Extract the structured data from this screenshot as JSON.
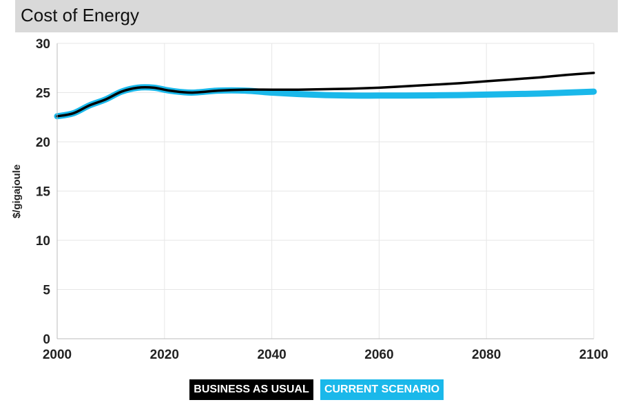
{
  "header": {
    "title": "Cost of Energy"
  },
  "legend": {
    "business_label": "BUSINESS AS USUAL",
    "current_label": "CURRENT SCENARIO"
  },
  "colors": {
    "business": "#000000",
    "current": "#1ab8ea",
    "grid": "#e6e6e6",
    "title_bg": "#d9d9d9"
  },
  "chart_data": {
    "type": "line",
    "title": "Cost of Energy",
    "xlabel": "",
    "ylabel": "$/gigajoule",
    "xlim": [
      2000,
      2100
    ],
    "ylim": [
      0,
      30
    ],
    "x_ticks": [
      2000,
      2020,
      2040,
      2060,
      2080,
      2100
    ],
    "y_ticks": [
      0,
      5,
      10,
      15,
      20,
      25,
      30
    ],
    "grid": true,
    "legend_position": "bottom",
    "series": [
      {
        "name": "BUSINESS AS USUAL",
        "x": [
          2000,
          2003,
          2006,
          2009,
          2012,
          2015,
          2018,
          2021,
          2025,
          2030,
          2035,
          2040,
          2045,
          2050,
          2055,
          2060,
          2065,
          2070,
          2075,
          2080,
          2085,
          2090,
          2095,
          2100
        ],
        "y": [
          22.6,
          22.9,
          23.7,
          24.3,
          25.1,
          25.5,
          25.5,
          25.2,
          25.0,
          25.2,
          25.3,
          25.3,
          25.3,
          25.35,
          25.4,
          25.5,
          25.65,
          25.8,
          25.95,
          26.15,
          26.35,
          26.55,
          26.8,
          27.0
        ]
      },
      {
        "name": "CURRENT SCENARIO",
        "x": [
          2000,
          2003,
          2006,
          2009,
          2012,
          2015,
          2018,
          2021,
          2025,
          2030,
          2035,
          2040,
          2045,
          2050,
          2055,
          2060,
          2065,
          2070,
          2075,
          2080,
          2085,
          2090,
          2095,
          2100
        ],
        "y": [
          22.6,
          22.9,
          23.7,
          24.3,
          25.1,
          25.5,
          25.5,
          25.2,
          25.0,
          25.2,
          25.2,
          25.0,
          24.85,
          24.75,
          24.7,
          24.7,
          24.7,
          24.72,
          24.75,
          24.8,
          24.85,
          24.9,
          25.0,
          25.1
        ]
      }
    ]
  }
}
